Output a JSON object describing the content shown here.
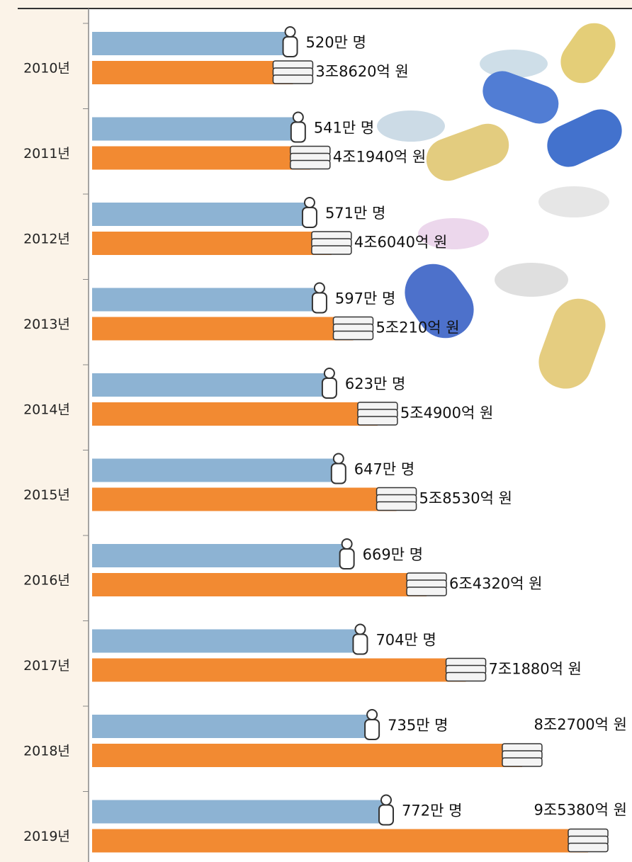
{
  "chart_data": {
    "type": "bar",
    "categories": [
      "2010년",
      "2011년",
      "2012년",
      "2013년",
      "2014년",
      "2015년",
      "2016년",
      "2017년",
      "2018년",
      "2019년"
    ],
    "series": [
      {
        "color": "#8db3d3",
        "values": [
          520,
          541,
          571,
          597,
          623,
          647,
          669,
          704,
          735,
          772
        ],
        "value_labels": [
          "520만 명",
          "541만 명",
          "571만 명",
          "597만 명",
          "623만 명",
          "647만 명",
          "669만 명",
          "704만 명",
          "735만 명",
          "772만 명"
        ]
      },
      {
        "color": "#f28a32",
        "values": [
          38620,
          41940,
          46040,
          50210,
          54900,
          58530,
          64320,
          71880,
          82700,
          95380
        ],
        "value_labels": [
          "3조8620억 원",
          "4조1940억 원",
          "4조6040억 원",
          "5조210억 원",
          "5조4900억 원",
          "5조8530억 원",
          "6조4320억 원",
          "7조1880억 원",
          "8조2700억 원",
          "9조5380억 원"
        ]
      }
    ]
  }
}
